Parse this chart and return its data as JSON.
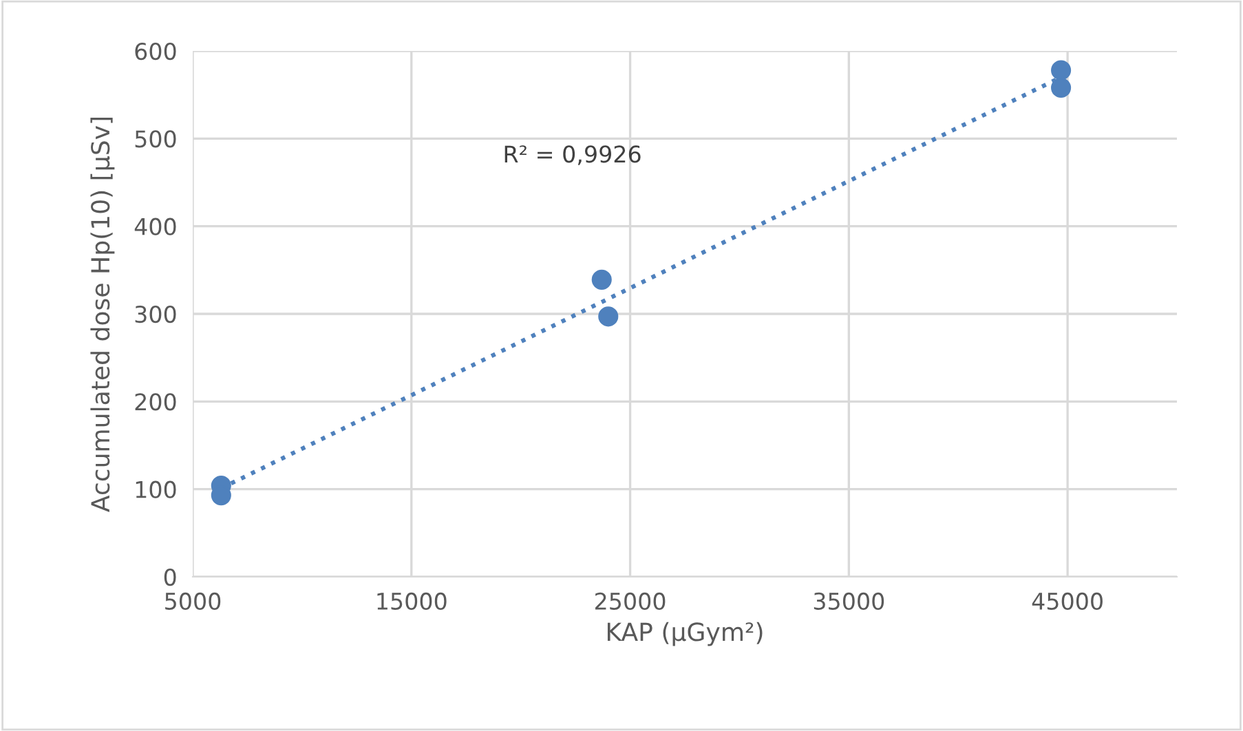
{
  "chart_data": {
    "type": "scatter",
    "xlabel": "KAP (µGym²)",
    "ylabel": "Accumulated dose Hp(10) [µSv]",
    "series": [
      {
        "color": "#4f81bd",
        "marker": "circle",
        "x": [
          6300,
          6300,
          23700,
          24000,
          44700,
          44700
        ],
        "values": [
          104,
          93,
          339,
          297,
          578,
          558
        ]
      },
      {
        "type": "line",
        "color": "#4f81bd",
        "line_style": "dotted",
        "marker": "none",
        "x": [
          6300,
          44700
        ],
        "values": [
          101,
          570
        ]
      }
    ],
    "annotations": [
      "R² = 0,9926"
    ],
    "xlim": [
      5000,
      50000
    ],
    "xticks": [
      5000,
      15000,
      25000,
      35000,
      45000
    ],
    "ylim": [
      0,
      600
    ],
    "yticks": [
      0,
      100,
      200,
      300,
      400,
      500,
      600
    ],
    "grid": true,
    "legend": false
  }
}
